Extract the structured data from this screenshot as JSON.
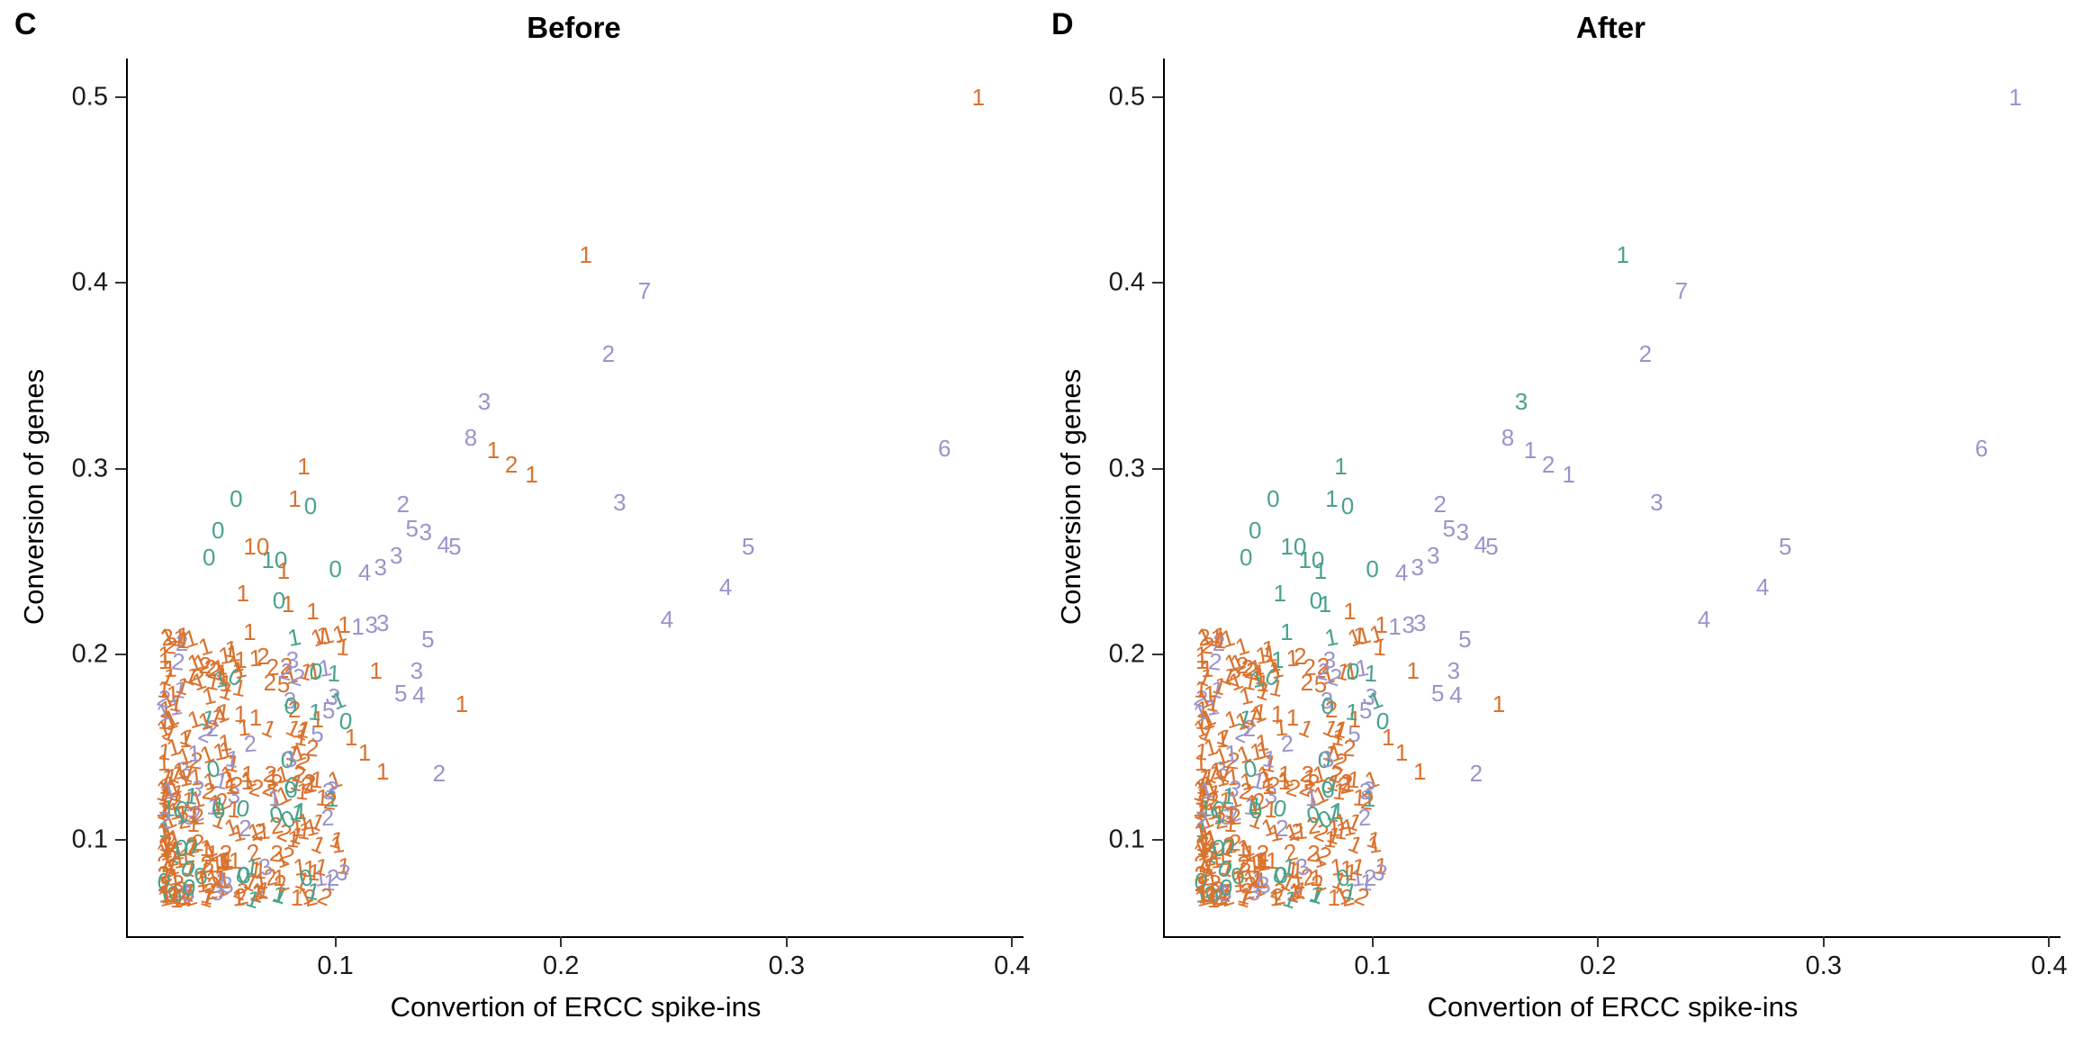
{
  "chart_data": [
    {
      "type": "scatter",
      "panel_letter": "C",
      "title": "Before",
      "xlabel": "Convertion of ERCC spike-ins",
      "ylabel": "Conversion of genes",
      "xlim": [
        0.008,
        0.405
      ],
      "ylim": [
        0.048,
        0.521
      ],
      "x_ticks": [
        0.1,
        0.2,
        0.3,
        0.4
      ],
      "y_ticks": [
        0.1,
        0.2,
        0.3,
        0.4,
        0.5
      ],
      "point_glyph": "digit-text",
      "colors": {
        "o": "#d9732f",
        "p": "#9b94cb",
        "t": "#4aa28d"
      },
      "color_legend": {
        "o": "orange",
        "p": "purple",
        "t": "teal"
      },
      "points": [
        [
          0.385,
          0.5,
          "1",
          "o"
        ],
        [
          0.211,
          0.415,
          "1",
          "o"
        ],
        [
          0.237,
          0.396,
          "7",
          "p"
        ],
        [
          0.221,
          0.362,
          "2",
          "p"
        ],
        [
          0.166,
          0.336,
          "3",
          "p"
        ],
        [
          0.16,
          0.317,
          "8",
          "p"
        ],
        [
          0.17,
          0.31,
          "1",
          "o"
        ],
        [
          0.178,
          0.302,
          "2",
          "o"
        ],
        [
          0.187,
          0.297,
          "1",
          "o"
        ],
        [
          0.37,
          0.311,
          "6",
          "p"
        ],
        [
          0.226,
          0.282,
          "3",
          "p"
        ],
        [
          0.283,
          0.258,
          "5",
          "p"
        ],
        [
          0.273,
          0.236,
          "4",
          "p"
        ],
        [
          0.247,
          0.219,
          "4",
          "p"
        ],
        [
          0.13,
          0.281,
          "2",
          "p"
        ],
        [
          0.134,
          0.268,
          "5",
          "p"
        ],
        [
          0.14,
          0.266,
          "3",
          "p"
        ],
        [
          0.148,
          0.259,
          "4",
          "p"
        ],
        [
          0.153,
          0.258,
          "5",
          "p"
        ],
        [
          0.127,
          0.253,
          "3",
          "p"
        ],
        [
          0.113,
          0.244,
          "4",
          "p"
        ],
        [
          0.12,
          0.247,
          "3",
          "p"
        ],
        [
          0.11,
          0.215,
          "1",
          "p"
        ],
        [
          0.116,
          0.216,
          "3",
          "p"
        ],
        [
          0.121,
          0.217,
          "3",
          "p"
        ],
        [
          0.141,
          0.208,
          "5",
          "p"
        ],
        [
          0.136,
          0.191,
          "3",
          "p"
        ],
        [
          0.129,
          0.179,
          "5",
          "p"
        ],
        [
          0.137,
          0.178,
          "4",
          "p"
        ],
        [
          0.097,
          0.17,
          "5",
          "p"
        ],
        [
          0.146,
          0.136,
          "2",
          "p"
        ],
        [
          0.097,
          0.126,
          "3",
          "p"
        ],
        [
          0.092,
          0.157,
          "5",
          "p"
        ],
        [
          0.06,
          0.106,
          "2",
          "p"
        ],
        [
          0.056,
          0.284,
          "0",
          "t"
        ],
        [
          0.048,
          0.267,
          "0",
          "t"
        ],
        [
          0.044,
          0.252,
          "0",
          "t"
        ],
        [
          0.089,
          0.28,
          "0",
          "t"
        ],
        [
          0.073,
          0.251,
          "10",
          "t"
        ],
        [
          0.1,
          0.246,
          "0",
          "t"
        ],
        [
          0.075,
          0.229,
          "0",
          "t"
        ],
        [
          0.086,
          0.301,
          "1",
          "o"
        ],
        [
          0.082,
          0.284,
          "1",
          "o"
        ],
        [
          0.065,
          0.258,
          "10",
          "o"
        ],
        [
          0.077,
          0.245,
          "1",
          "o"
        ],
        [
          0.059,
          0.233,
          "1",
          "o"
        ],
        [
          0.079,
          0.227,
          "1",
          "o"
        ],
        [
          0.09,
          0.223,
          "1",
          "o"
        ],
        [
          0.104,
          0.216,
          "1",
          "o"
        ],
        [
          0.062,
          0.212,
          "1",
          "o"
        ],
        [
          0.058,
          0.197,
          "1",
          "o"
        ],
        [
          0.068,
          0.199,
          "2",
          "o"
        ],
        [
          0.081,
          0.197,
          "3",
          "p"
        ],
        [
          0.071,
          0.185,
          "2",
          "o"
        ],
        [
          0.077,
          0.184,
          "5",
          "o"
        ],
        [
          0.156,
          0.173,
          "1",
          "o"
        ],
        [
          0.118,
          0.191,
          "1",
          "o"
        ],
        [
          0.107,
          0.155,
          "1",
          "o"
        ],
        [
          0.113,
          0.147,
          "1",
          "o"
        ],
        [
          0.121,
          0.137,
          "1",
          "o"
        ]
      ],
      "cluster": {
        "seed": 20,
        "count": 340,
        "x_min": 0.024,
        "x_max": 0.105,
        "x_pow": 1.7,
        "y_min": 0.068,
        "y_max": 0.212,
        "y_pow": 1.35,
        "labels": [
          {
            "label": "1",
            "c": "o",
            "w": 0.58
          },
          {
            "label": "2",
            "c": "o",
            "w": 0.18
          },
          {
            "label": "1",
            "c": "t",
            "w": 0.05
          },
          {
            "label": "0",
            "c": "t",
            "w": 0.06
          },
          {
            "label": "2",
            "c": "p",
            "w": 0.05
          },
          {
            "label": "1",
            "c": "p",
            "w": 0.04
          },
          {
            "label": "3",
            "c": "p",
            "w": 0.04
          }
        ]
      }
    },
    {
      "type": "scatter",
      "panel_letter": "D",
      "title": "After",
      "xlabel": "Convertion of ERCC spike-ins",
      "ylabel": "Conversion of genes",
      "xlim": [
        0.008,
        0.405
      ],
      "ylim": [
        0.048,
        0.521
      ],
      "x_ticks": [
        0.1,
        0.2,
        0.3,
        0.4
      ],
      "y_ticks": [
        0.1,
        0.2,
        0.3,
        0.4,
        0.5
      ],
      "point_glyph": "digit-text",
      "colors": {
        "o": "#d9732f",
        "p": "#9b94cb",
        "t": "#4aa28d"
      },
      "color_legend": {
        "o": "orange",
        "p": "purple",
        "t": "teal"
      },
      "points": [
        [
          0.385,
          0.5,
          "1",
          "p"
        ],
        [
          0.211,
          0.415,
          "1",
          "t"
        ],
        [
          0.237,
          0.396,
          "7",
          "p"
        ],
        [
          0.221,
          0.362,
          "2",
          "p"
        ],
        [
          0.166,
          0.336,
          "3",
          "t"
        ],
        [
          0.16,
          0.317,
          "8",
          "p"
        ],
        [
          0.17,
          0.31,
          "1",
          "p"
        ],
        [
          0.178,
          0.302,
          "2",
          "p"
        ],
        [
          0.187,
          0.297,
          "1",
          "p"
        ],
        [
          0.37,
          0.311,
          "6",
          "p"
        ],
        [
          0.226,
          0.282,
          "3",
          "p"
        ],
        [
          0.283,
          0.258,
          "5",
          "p"
        ],
        [
          0.273,
          0.236,
          "4",
          "p"
        ],
        [
          0.247,
          0.219,
          "4",
          "p"
        ],
        [
          0.13,
          0.281,
          "2",
          "p"
        ],
        [
          0.134,
          0.268,
          "5",
          "p"
        ],
        [
          0.14,
          0.266,
          "3",
          "p"
        ],
        [
          0.148,
          0.259,
          "4",
          "p"
        ],
        [
          0.153,
          0.258,
          "5",
          "p"
        ],
        [
          0.127,
          0.253,
          "3",
          "p"
        ],
        [
          0.113,
          0.244,
          "4",
          "p"
        ],
        [
          0.12,
          0.247,
          "3",
          "p"
        ],
        [
          0.11,
          0.215,
          "1",
          "p"
        ],
        [
          0.116,
          0.216,
          "3",
          "p"
        ],
        [
          0.121,
          0.217,
          "3",
          "p"
        ],
        [
          0.141,
          0.208,
          "5",
          "p"
        ],
        [
          0.136,
          0.191,
          "3",
          "p"
        ],
        [
          0.129,
          0.179,
          "5",
          "p"
        ],
        [
          0.137,
          0.178,
          "4",
          "p"
        ],
        [
          0.097,
          0.17,
          "5",
          "p"
        ],
        [
          0.146,
          0.136,
          "2",
          "p"
        ],
        [
          0.097,
          0.126,
          "3",
          "p"
        ],
        [
          0.092,
          0.157,
          "5",
          "p"
        ],
        [
          0.06,
          0.106,
          "2",
          "p"
        ],
        [
          0.056,
          0.284,
          "0",
          "t"
        ],
        [
          0.048,
          0.267,
          "0",
          "t"
        ],
        [
          0.044,
          0.252,
          "0",
          "t"
        ],
        [
          0.089,
          0.28,
          "0",
          "t"
        ],
        [
          0.073,
          0.251,
          "10",
          "t"
        ],
        [
          0.1,
          0.246,
          "0",
          "t"
        ],
        [
          0.075,
          0.229,
          "0",
          "t"
        ],
        [
          0.086,
          0.301,
          "1",
          "t"
        ],
        [
          0.082,
          0.284,
          "1",
          "t"
        ],
        [
          0.065,
          0.258,
          "10",
          "t"
        ],
        [
          0.077,
          0.245,
          "1",
          "t"
        ],
        [
          0.059,
          0.233,
          "1",
          "t"
        ],
        [
          0.079,
          0.227,
          "1",
          "t"
        ],
        [
          0.09,
          0.223,
          "1",
          "o"
        ],
        [
          0.104,
          0.216,
          "1",
          "o"
        ],
        [
          0.062,
          0.212,
          "1",
          "t"
        ],
        [
          0.058,
          0.197,
          "1",
          "t"
        ],
        [
          0.068,
          0.199,
          "2",
          "o"
        ],
        [
          0.081,
          0.197,
          "3",
          "p"
        ],
        [
          0.071,
          0.185,
          "2",
          "o"
        ],
        [
          0.077,
          0.184,
          "5",
          "o"
        ],
        [
          0.156,
          0.173,
          "1",
          "o"
        ],
        [
          0.118,
          0.191,
          "1",
          "o"
        ],
        [
          0.107,
          0.155,
          "1",
          "o"
        ],
        [
          0.113,
          0.147,
          "1",
          "o"
        ],
        [
          0.121,
          0.137,
          "1",
          "o"
        ]
      ],
      "cluster": {
        "seed": 20,
        "count": 340,
        "x_min": 0.024,
        "x_max": 0.105,
        "x_pow": 1.7,
        "y_min": 0.068,
        "y_max": 0.212,
        "y_pow": 1.35,
        "labels": [
          {
            "label": "1",
            "c": "o",
            "w": 0.58
          },
          {
            "label": "2",
            "c": "o",
            "w": 0.18
          },
          {
            "label": "1",
            "c": "t",
            "w": 0.05
          },
          {
            "label": "0",
            "c": "t",
            "w": 0.06
          },
          {
            "label": "2",
            "c": "p",
            "w": 0.05
          },
          {
            "label": "1",
            "c": "p",
            "w": 0.04
          },
          {
            "label": "3",
            "c": "p",
            "w": 0.04
          }
        ]
      }
    }
  ]
}
